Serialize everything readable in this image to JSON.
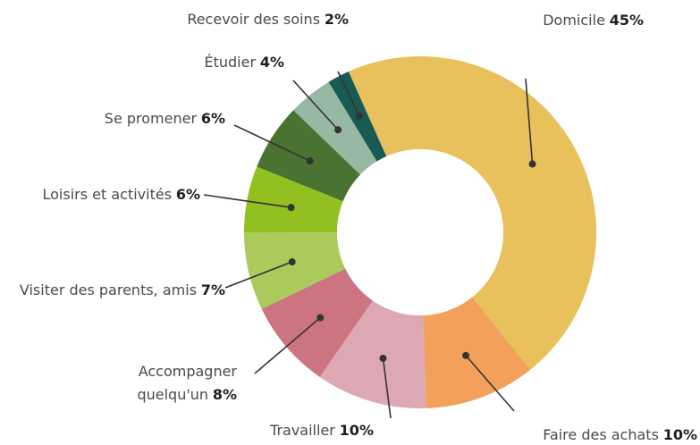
{
  "chart_data": {
    "type": "donut",
    "categories": [
      "Domicile",
      "Faire des achats",
      "Travailler",
      "Accompagner quelqu'un",
      "Visiter des parents, amis",
      "Loisirs et activités",
      "Se promener",
      "Étudier",
      "Recevoir des soins"
    ],
    "values": [
      45,
      10,
      10,
      8,
      7,
      6,
      6,
      4,
      2
    ],
    "value_labels": [
      "45%",
      "10%",
      "10%",
      "8%",
      "7%",
      "6%",
      "6%",
      "4%",
      "2%"
    ],
    "colors": [
      "#e8c05c",
      "#f2a05a",
      "#dda8b4",
      "#cc7480",
      "#aacb5c",
      "#92c020",
      "#4a7230",
      "#97b9a4",
      "#1a5a55"
    ]
  }
}
